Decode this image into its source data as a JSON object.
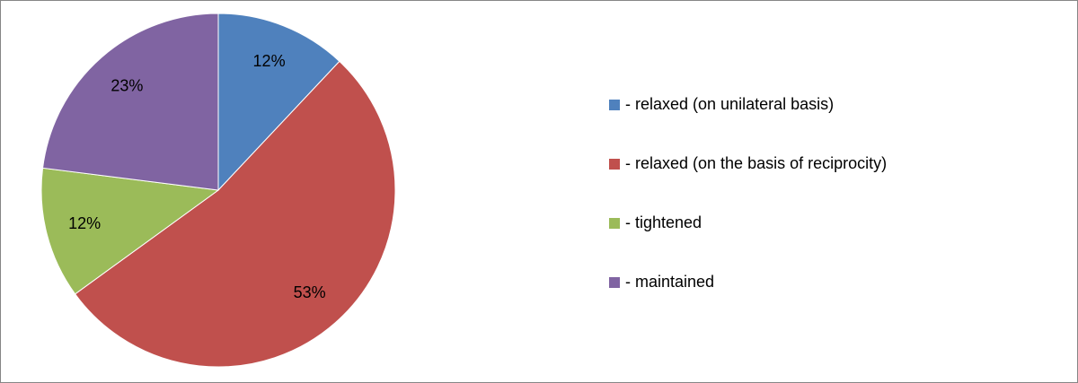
{
  "chart_data": {
    "type": "pie",
    "categories": [
      "- relaxed (on unilateral basis)",
      "- relaxed (on the basis of reciprocity)",
      "- tightened",
      "- maintained"
    ],
    "values": [
      12,
      53,
      12,
      23
    ],
    "value_labels": [
      "12%",
      "53%",
      "12%",
      "23%"
    ],
    "colors": [
      "#4f81bd",
      "#c0504d",
      "#9bbb59",
      "#8064a2"
    ],
    "legend": "right"
  }
}
